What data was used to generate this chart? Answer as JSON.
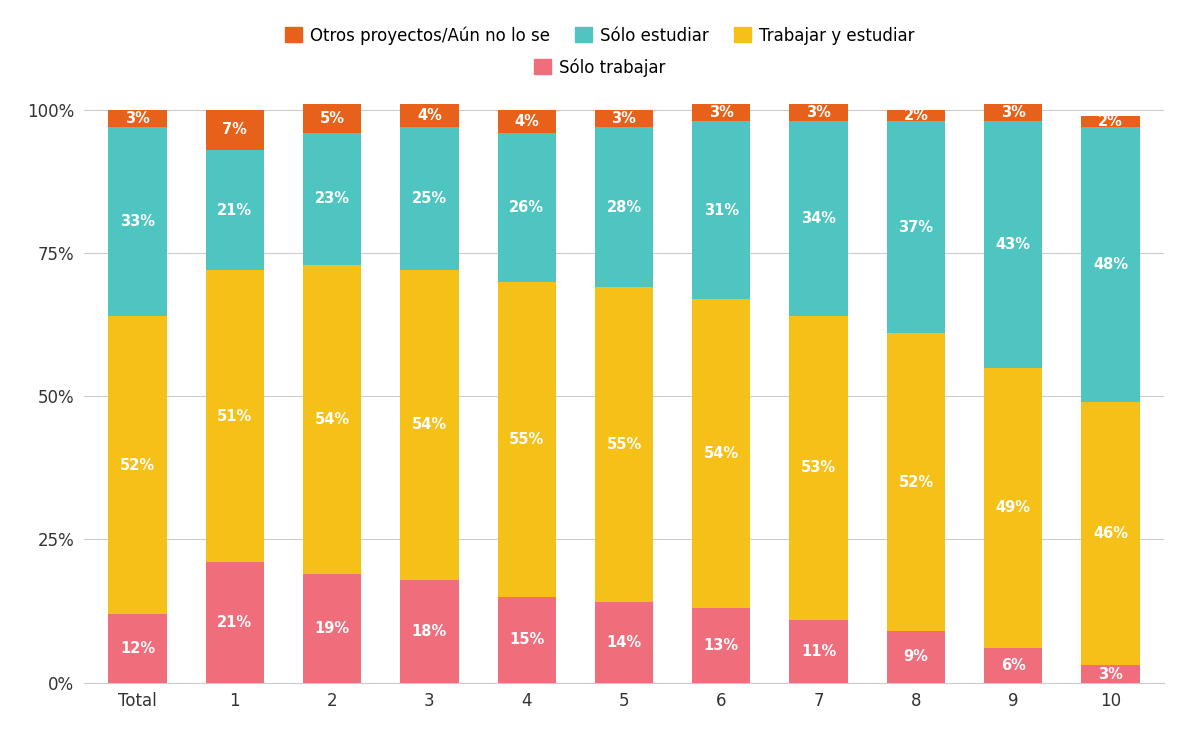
{
  "categories": [
    "Total",
    "1",
    "2",
    "3",
    "4",
    "5",
    "6",
    "7",
    "8",
    "9",
    "10"
  ],
  "solo_trabajar": [
    12,
    21,
    19,
    18,
    15,
    14,
    13,
    11,
    9,
    6,
    3
  ],
  "trabajar_estudiar": [
    52,
    51,
    54,
    54,
    55,
    55,
    54,
    53,
    52,
    49,
    46
  ],
  "solo_estudiar": [
    33,
    21,
    23,
    25,
    26,
    28,
    31,
    34,
    37,
    43,
    48
  ],
  "otros_proyectos": [
    3,
    7,
    5,
    4,
    4,
    3,
    3,
    3,
    2,
    3,
    2
  ],
  "color_solo_trabajar": "#f06d7b",
  "color_trabajar_estudiar": "#f5c018",
  "color_solo_estudiar": "#4ec5c1",
  "color_otros_proyectos": "#e8611a",
  "legend_labels_row1": [
    "Otros proyectos/Aún no lo se",
    "Sólo estudiar",
    "Trabajar y estudiar"
  ],
  "legend_labels_row2": [
    "Sólo trabajar"
  ],
  "background_color": "#ffffff",
  "yticks": [
    0,
    25,
    50,
    75,
    100
  ],
  "ytick_labels": [
    "0%",
    "25%",
    "50%",
    "75%",
    "100%"
  ],
  "text_color_white": "#ffffff",
  "bar_width": 0.6,
  "label_fontsize": 10.5,
  "tick_fontsize": 12
}
